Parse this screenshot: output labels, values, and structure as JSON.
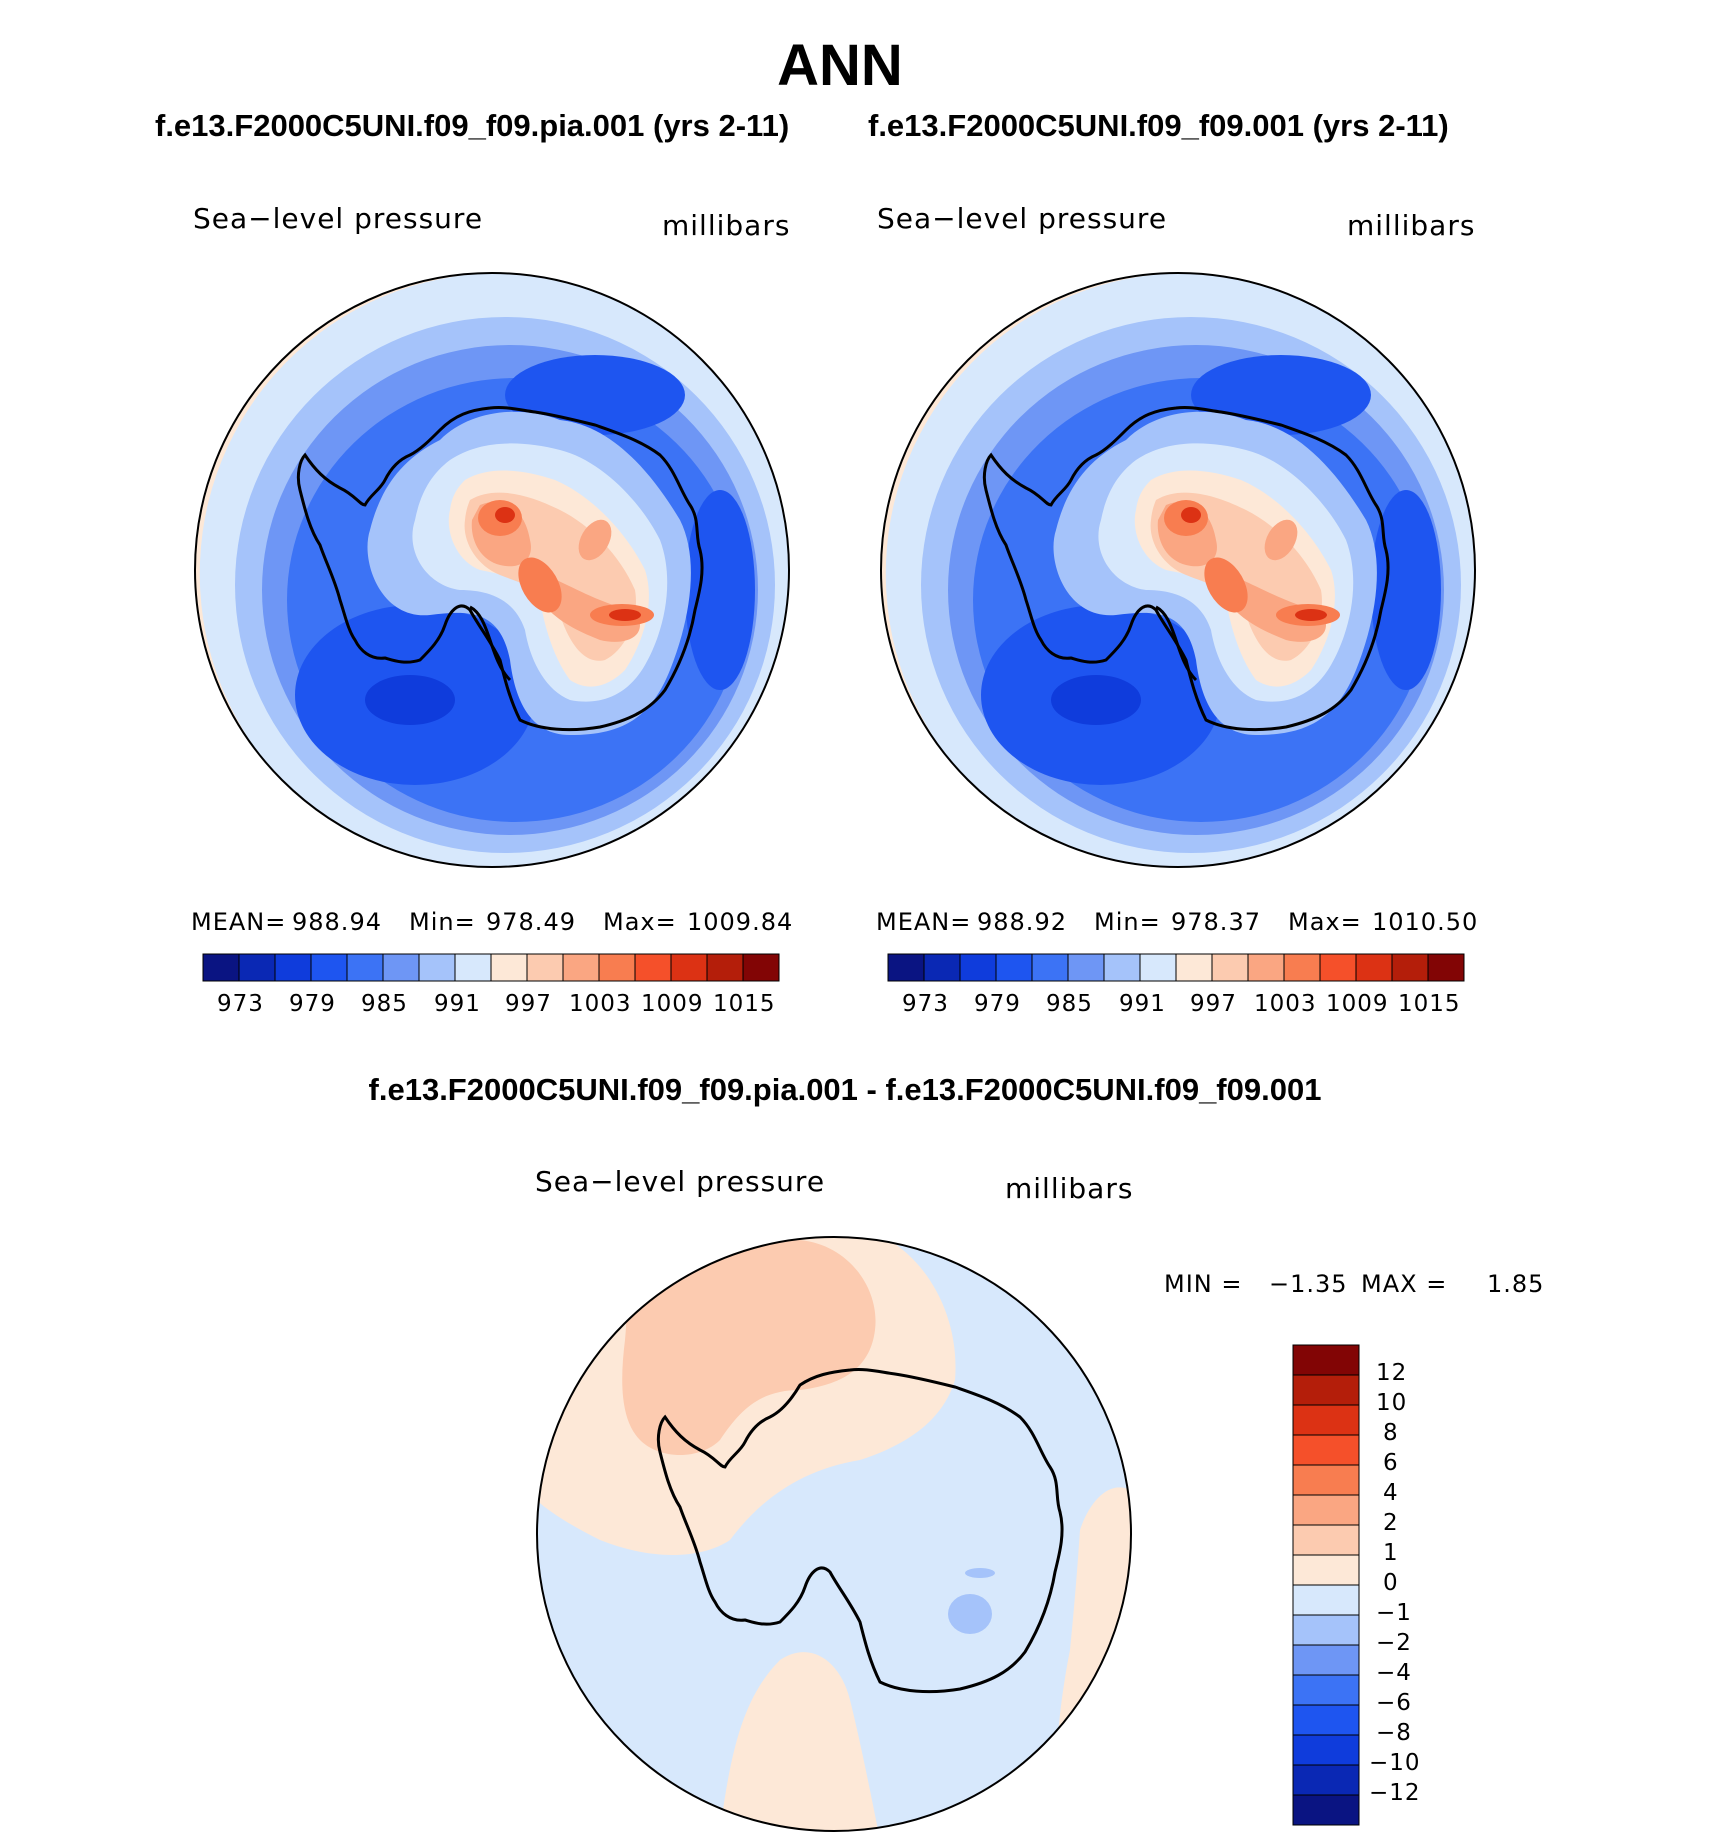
{
  "title": "ANN",
  "panels": [
    {
      "case_title": "f.e13.F2000C5UNI.f09_f09.pia.001 (yrs 2-11)",
      "variable": "Sea−level pressure",
      "units": "millibars",
      "mean_label": "MEAN=",
      "mean": "988.94",
      "min_label": "Min=",
      "min": "978.49",
      "max_label": "Max=",
      "max": "1009.84"
    },
    {
      "case_title": "f.e13.F2000C5UNI.f09_f09.001 (yrs 2-11)",
      "variable": "Sea−level pressure",
      "units": "millibars",
      "mean_label": "MEAN=",
      "mean": "988.92",
      "min_label": "Min=",
      "min": "978.37",
      "max_label": "Max=",
      "max": "1010.50"
    }
  ],
  "colorbar": {
    "colors": [
      "#0a1482",
      "#0a28b4",
      "#0f3cdc",
      "#1e55f0",
      "#3c73f5",
      "#6e96f5",
      "#a5c3fa",
      "#d7e8fc",
      "#fde8d7",
      "#fccbb0",
      "#faa682",
      "#f87d50",
      "#f5502a",
      "#dc3214",
      "#b41e0a",
      "#820505"
    ],
    "tick_labels": [
      "973",
      "979",
      "985",
      "991",
      "997",
      "1003",
      "1009",
      "1015"
    ]
  },
  "difference": {
    "title": "f.e13.F2000C5UNI.f09_f09.pia.001 - f.e13.F2000C5UNI.f09_f09.001",
    "variable": "Sea−level pressure",
    "units": "millibars",
    "min_label": "MIN =",
    "min": "−1.35",
    "max_label": "MAX =",
    "max": "1.85",
    "colorbar": {
      "colors_top_to_bottom": [
        "#820505",
        "#b41e0a",
        "#dc3214",
        "#f5502a",
        "#f87d50",
        "#faa682",
        "#fccbb0",
        "#fde8d7",
        "#d7e8fc",
        "#a5c3fa",
        "#6e96f5",
        "#3c73f5",
        "#1e55f0",
        "#0f3cdc",
        "#0a28b4",
        "#0a1482"
      ],
      "tick_labels": [
        "12",
        "10",
        "8",
        "6",
        "4",
        "2",
        "1",
        "0",
        "−1",
        "−2",
        "−4",
        "−6",
        "−8",
        "−10",
        "−12"
      ]
    }
  }
}
